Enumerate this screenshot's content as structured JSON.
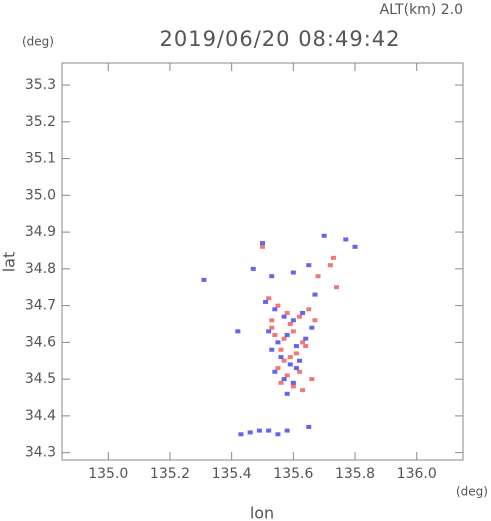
{
  "chart_data": {
    "type": "scatter",
    "alt_label": "ALT(km) 2.0",
    "title": "2019/06/20 08:49:42",
    "y_unit": "(deg)",
    "x_unit": "(deg)",
    "xlabel": "lon",
    "ylabel": "lat",
    "xlim": [
      134.85,
      136.15
    ],
    "ylim": [
      34.28,
      35.36
    ],
    "xticks": [
      {
        "value": 135,
        "label": "135.0"
      },
      135.2,
      135.4,
      135.6,
      135.8,
      {
        "value": 136,
        "label": "136.0"
      }
    ],
    "yticks": [
      34.3,
      34.4,
      34.5,
      34.6,
      34.7,
      34.8,
      34.9,
      {
        "value": 35,
        "label": "35.0"
      },
      35.1,
      35.2,
      35.3
    ],
    "series": [
      {
        "color": "#f27878",
        "x": [
          135.52,
          135.55,
          135.53,
          135.58,
          135.62,
          135.65,
          135.67,
          135.54,
          135.57,
          135.6,
          135.63,
          135.56,
          135.59,
          135.61,
          135.55,
          135.58,
          135.62,
          135.66,
          135.6,
          135.57,
          135.53,
          135.64,
          135.72,
          135.74,
          135.68,
          135.73,
          135.5,
          135.63,
          135.59,
          135.56
        ],
        "values": [
          34.72,
          34.7,
          34.66,
          34.68,
          34.67,
          34.69,
          34.66,
          34.62,
          34.61,
          34.63,
          34.6,
          34.58,
          34.56,
          34.57,
          34.53,
          34.51,
          34.52,
          34.5,
          34.48,
          34.55,
          34.64,
          34.59,
          34.81,
          34.75,
          34.78,
          34.83,
          34.86,
          34.47,
          34.65,
          34.49
        ]
      },
      {
        "color": "#6464ee",
        "x": [
          135.51,
          135.54,
          135.57,
          135.6,
          135.63,
          135.66,
          135.52,
          135.55,
          135.58,
          135.61,
          135.64,
          135.56,
          135.59,
          135.62,
          135.54,
          135.57,
          135.6,
          135.58,
          135.61,
          135.53,
          135.5,
          135.47,
          135.53,
          135.6,
          135.65,
          135.77,
          135.8,
          135.31,
          135.43,
          135.46,
          135.49,
          135.52,
          135.55,
          135.58,
          135.65,
          135.7,
          135.42,
          135.67
        ],
        "values": [
          34.71,
          34.69,
          34.67,
          34.66,
          34.68,
          34.64,
          34.63,
          34.6,
          34.62,
          34.59,
          34.61,
          34.56,
          34.54,
          34.55,
          34.52,
          34.5,
          34.49,
          34.46,
          34.53,
          34.58,
          34.87,
          34.8,
          34.78,
          34.79,
          34.81,
          34.88,
          34.86,
          34.77,
          34.35,
          34.355,
          34.36,
          34.36,
          34.35,
          34.36,
          34.37,
          34.89,
          34.63,
          34.73
        ]
      }
    ]
  }
}
